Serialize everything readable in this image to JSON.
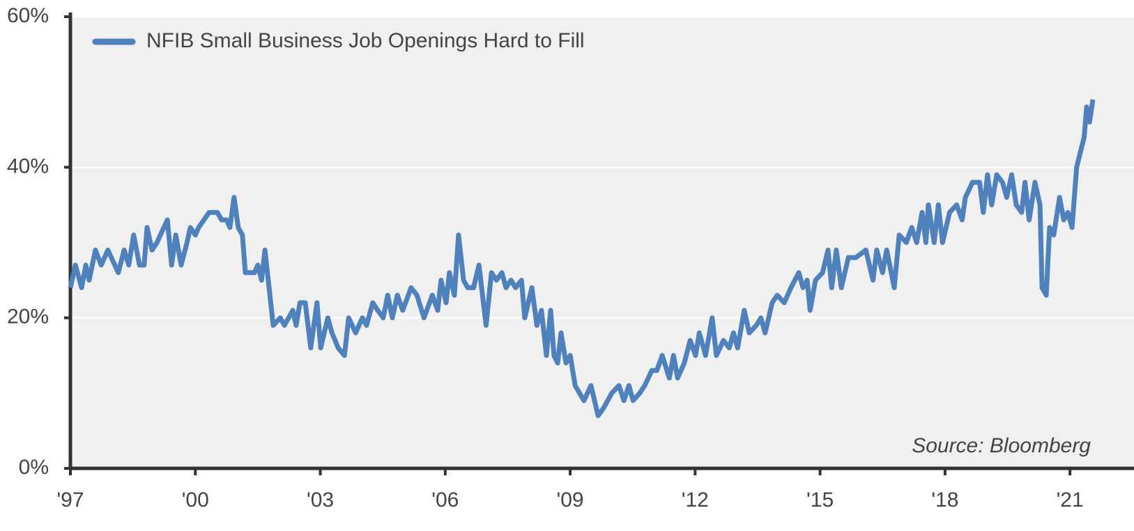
{
  "chart_data": {
    "type": "line",
    "annotation": "Source: Bloomberg",
    "x": [
      1997.0,
      1997.12,
      1997.27,
      1997.37,
      1997.45,
      1997.6,
      1997.74,
      1997.9,
      1998.15,
      1998.29,
      1998.4,
      1998.52,
      1998.66,
      1998.77,
      1998.84,
      1998.96,
      1999.08,
      1999.16,
      1999.33,
      1999.43,
      1999.53,
      1999.66,
      1999.8,
      1999.88,
      2000.0,
      2000.08,
      2000.33,
      2000.53,
      2000.63,
      2000.75,
      2000.83,
      2000.93,
      2001.03,
      2001.13,
      2001.2,
      2001.42,
      2001.5,
      2001.59,
      2001.67,
      2001.87,
      2002.04,
      2002.14,
      2002.24,
      2002.34,
      2002.42,
      2002.51,
      2002.64,
      2002.77,
      2002.92,
      2003.01,
      2003.18,
      2003.28,
      2003.43,
      2003.58,
      2003.68,
      2003.85,
      2004.01,
      2004.11,
      2004.26,
      2004.38,
      2004.51,
      2004.62,
      2004.73,
      2004.85,
      2004.98,
      2005.18,
      2005.32,
      2005.49,
      2005.69,
      2005.82,
      2005.9,
      2006.02,
      2006.1,
      2006.22,
      2006.32,
      2006.44,
      2006.54,
      2006.68,
      2006.81,
      2006.98,
      2007.11,
      2007.23,
      2007.36,
      2007.46,
      2007.58,
      2007.69,
      2007.83,
      2007.91,
      2008.08,
      2008.2,
      2008.31,
      2008.43,
      2008.53,
      2008.61,
      2008.7,
      2008.78,
      2008.9,
      2009.0,
      2009.12,
      2009.33,
      2009.5,
      2009.67,
      2009.8,
      2010.0,
      2010.17,
      2010.29,
      2010.41,
      2010.51,
      2010.67,
      2010.79,
      2010.96,
      2011.08,
      2011.21,
      2011.38,
      2011.48,
      2011.58,
      2011.74,
      2011.88,
      2012.01,
      2012.1,
      2012.25,
      2012.41,
      2012.51,
      2012.68,
      2012.82,
      2012.92,
      2013.02,
      2013.18,
      2013.3,
      2013.47,
      2013.58,
      2013.68,
      2013.85,
      2013.97,
      2014.14,
      2014.3,
      2014.49,
      2014.59,
      2014.69,
      2014.76,
      2014.89,
      2015.06,
      2015.19,
      2015.28,
      2015.39,
      2015.51,
      2015.68,
      2015.86,
      2016.1,
      2016.27,
      2016.36,
      2016.5,
      2016.6,
      2016.78,
      2016.9,
      2017.07,
      2017.2,
      2017.32,
      2017.45,
      2017.54,
      2017.6,
      2017.74,
      2017.84,
      2017.94,
      2018.11,
      2018.28,
      2018.41,
      2018.49,
      2018.66,
      2018.83,
      2018.92,
      2019.02,
      2019.12,
      2019.24,
      2019.38,
      2019.48,
      2019.6,
      2019.71,
      2019.84,
      2019.92,
      2020.02,
      2020.16,
      2020.28,
      2020.33,
      2020.43,
      2020.51,
      2020.61,
      2020.75,
      2020.85,
      2020.95,
      2021.05,
      2021.16,
      2021.34,
      2021.4,
      2021.47,
      2021.55
    ],
    "series": [
      {
        "name": "NFIB Small Business Job Openings Hard to Fill",
        "color": "#4f81bd",
        "values": [
          24,
          27,
          24,
          27,
          25,
          29,
          27,
          29,
          26,
          29,
          27,
          31,
          27,
          27,
          32,
          29,
          30,
          31,
          33,
          27,
          31,
          27,
          30,
          32,
          31,
          32,
          34,
          34,
          33,
          33,
          32,
          36,
          32,
          31,
          26,
          26,
          27,
          25,
          29,
          19,
          20,
          19,
          20,
          21,
          19,
          22,
          22,
          16,
          22,
          16,
          20,
          18,
          16,
          15,
          20,
          18,
          20,
          19,
          22,
          21,
          20,
          23,
          20,
          23,
          21,
          24,
          23,
          20,
          23,
          21,
          25,
          22,
          26,
          23,
          31,
          25,
          24,
          24,
          27,
          19,
          26,
          25,
          26,
          24,
          25,
          24,
          25,
          20,
          24,
          19,
          21,
          15,
          21,
          15,
          14,
          18,
          14,
          15,
          11,
          9,
          11,
          7,
          8,
          10,
          11,
          9,
          11,
          9,
          10,
          11,
          13,
          13,
          15,
          12,
          15,
          12,
          14,
          17,
          15,
          18,
          15,
          20,
          15,
          17,
          16,
          18,
          16,
          21,
          18,
          19,
          20,
          18,
          22,
          23,
          22,
          24,
          26,
          24,
          25,
          21,
          25,
          26,
          29,
          24,
          29,
          24,
          28,
          28,
          29,
          25,
          29,
          26,
          29,
          24,
          31,
          30,
          32,
          30,
          34,
          30,
          35,
          30,
          35,
          30,
          34,
          35,
          33,
          36,
          38,
          38,
          34,
          39,
          35,
          39,
          38,
          36,
          39,
          35,
          34,
          38,
          33,
          38,
          35,
          24,
          23,
          32,
          31,
          36,
          33,
          34,
          32,
          40,
          44,
          48,
          46,
          49
        ]
      }
    ],
    "xlim": [
      1997,
      2021.55
    ],
    "xticks": [
      {
        "value": 1997,
        "label": "'97"
      },
      {
        "value": 2000,
        "label": "'00"
      },
      {
        "value": 2003,
        "label": "'03"
      },
      {
        "value": 2006,
        "label": "'06"
      },
      {
        "value": 2009,
        "label": "'09"
      },
      {
        "value": 2012,
        "label": "'12"
      },
      {
        "value": 2015,
        "label": "'15"
      },
      {
        "value": 2018,
        "label": "'18"
      },
      {
        "value": 2021,
        "label": "'21"
      }
    ],
    "ylim": [
      0,
      60
    ],
    "yticks": [
      {
        "value": 0,
        "label": "0%"
      },
      {
        "value": 20,
        "label": "20%"
      },
      {
        "value": 40,
        "label": "40%"
      },
      {
        "value": 60,
        "label": "60%"
      }
    ],
    "grid": true,
    "legend": "upper left"
  }
}
